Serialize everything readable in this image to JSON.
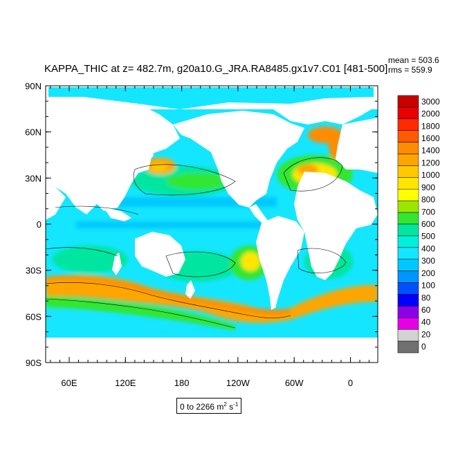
{
  "title": "KAPPA_THIC at z= 482.7m, g20a10.G_JRA.RA8485.gx1v7.C01 [481-500]",
  "stats": {
    "mean": "mean = 503.6",
    "rms": "rms = 559.9"
  },
  "lat_labels": [
    "90N",
    "60N",
    "30N",
    "0",
    "30S",
    "60S",
    "90S"
  ],
  "lon_labels": [
    "60E",
    "120E",
    "180",
    "120W",
    "60W",
    "0"
  ],
  "range_label": {
    "prefix": "0 to 2266 m",
    "exp1": "2",
    "mid": " s",
    "exp2": "-1"
  },
  "colorbar": {
    "labels": [
      "3000",
      "2000",
      "1800",
      "1600",
      "1400",
      "1200",
      "1000",
      "900",
      "800",
      "700",
      "600",
      "500",
      "400",
      "300",
      "200",
      "100",
      "80",
      "60",
      "40",
      "20",
      "0"
    ],
    "colors": [
      "#c80000",
      "#e60000",
      "#ff2a00",
      "#ff5a00",
      "#ff8c00",
      "#ffa500",
      "#ffc800",
      "#ffe600",
      "#ffff00",
      "#9be600",
      "#32e632",
      "#00e6a0",
      "#00f0dc",
      "#14e6ff",
      "#00c8ff",
      "#0096ff",
      "#0050ff",
      "#0000ff",
      "#8c00e6",
      "#e600e6",
      "#d2d2d2",
      "#707070"
    ]
  }
}
